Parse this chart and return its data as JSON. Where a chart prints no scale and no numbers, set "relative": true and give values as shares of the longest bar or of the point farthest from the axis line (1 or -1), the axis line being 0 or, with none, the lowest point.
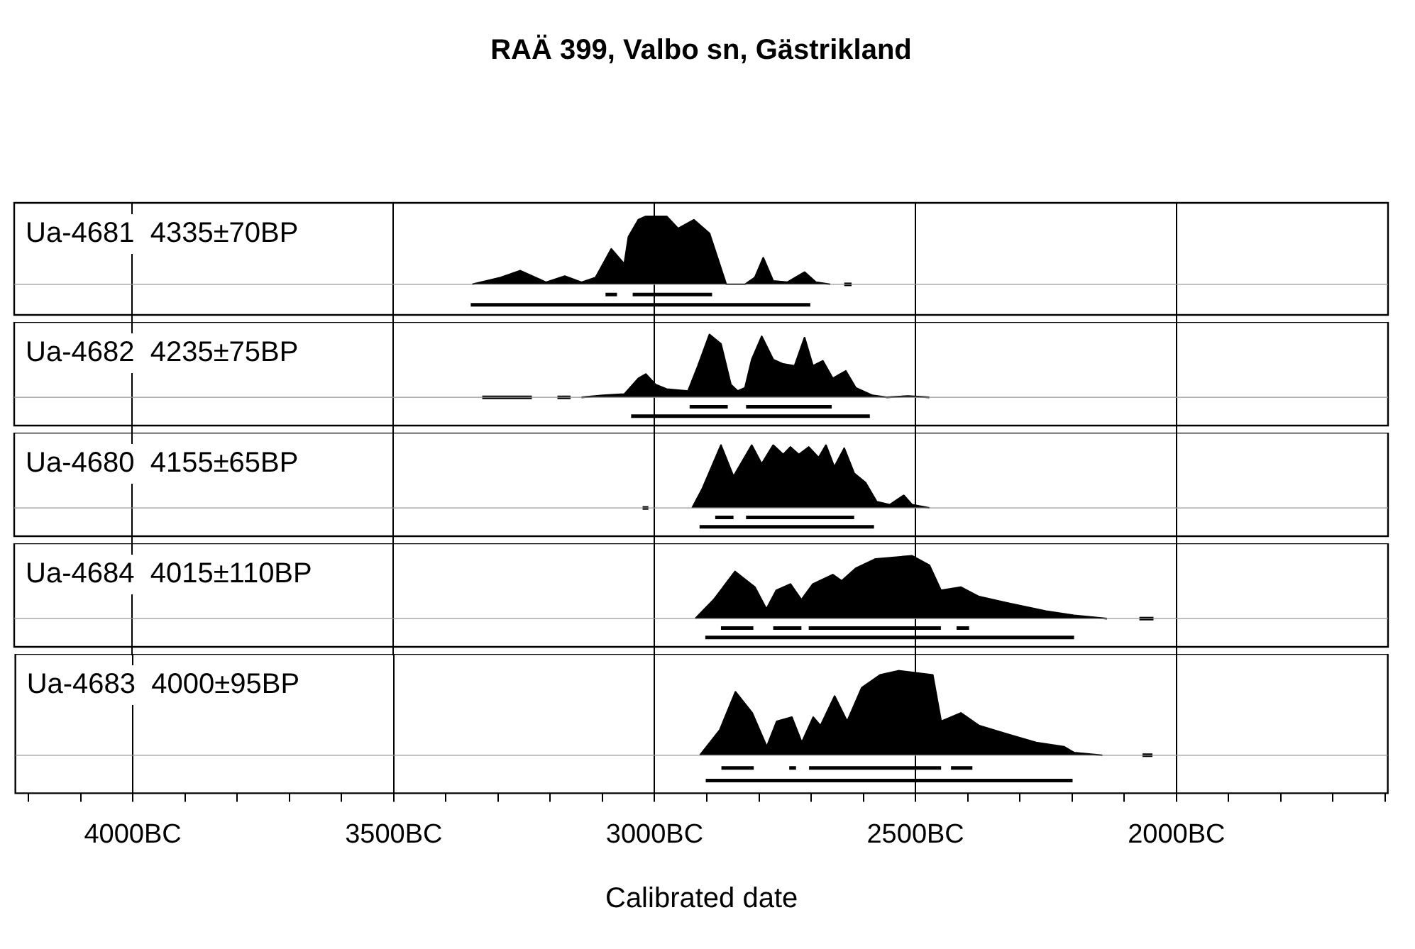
{
  "chart_data": [
    {
      "type": "area",
      "relative": true,
      "title": "RAÄ 399, Valbo sn, Gästrikland",
      "grid": "x",
      "tick_labels": false,
      "xlim": [
        -4225,
        -1595
      ],
      "xticks": [
        {
          "value": -4000,
          "label": null
        },
        {
          "value": -3500,
          "label": null
        },
        {
          "value": -3000,
          "label": null
        },
        {
          "value": -2500,
          "label": null
        },
        {
          "value": -2000,
          "label": null
        }
      ],
      "series": [
        {
          "name": "Ua-4681  4335±70BP",
          "color": "#000000",
          "x": [
            -3348,
            -3294,
            -3256,
            -3207,
            -3171,
            -3139,
            -3112,
            -3082,
            -3057,
            -3049,
            -3030,
            -3016,
            -2976,
            -2954,
            -2924,
            -2894,
            -2862,
            -2826,
            -2807,
            -2791,
            -2772,
            -2745,
            -2712,
            -2690,
            -2663
          ],
          "values": [
            0,
            0.1,
            0.2,
            0.03,
            0.12,
            0.03,
            0.1,
            0.52,
            0.3,
            0.7,
            0.95,
            1.0,
            1.0,
            0.82,
            0.95,
            0.75,
            0,
            0,
            0.1,
            0.39,
            0.05,
            0.03,
            0.18,
            0.03,
            0
          ]
        },
        {
          "type": "line",
          "color": "#000000",
          "x": [
            -2636,
            -2622
          ],
          "values": [
            0,
            0
          ]
        },
        {
          "type": "line",
          "color": "#000000",
          "x": [
            -3093,
            -3071,
            -3060,
            -3041,
            -2889
          ],
          "values": [
            -0.15,
            -0.15,
            null,
            -0.15,
            -0.15
          ]
        },
        {
          "type": "line",
          "color": "#000000",
          "x": [
            -3351,
            -2701
          ],
          "values": [
            -0.3,
            -0.3
          ]
        }
      ]
    },
    {
      "type": "area",
      "relative": true,
      "grid": "x",
      "tick_labels": false,
      "xlim": [
        -4225,
        -1595
      ],
      "xticks": [
        {
          "value": -4000,
          "label": null
        },
        {
          "value": -3500,
          "label": null
        },
        {
          "value": -3000,
          "label": null
        },
        {
          "value": -2500,
          "label": null
        },
        {
          "value": -2000,
          "label": null
        }
      ],
      "series": [
        {
          "name": "Ua-4682  4235±75BP",
          "color": "#000000",
          "x": [
            -3139,
            -3098,
            -3057,
            -3030,
            -3016,
            -2997,
            -2976,
            -2935,
            -2916,
            -2894,
            -2872,
            -2853,
            -2840,
            -2826,
            -2813,
            -2794,
            -2772,
            -2753,
            -2731,
            -2712,
            -2696,
            -2677,
            -2658,
            -2633,
            -2614,
            -2582,
            -2555,
            -2514,
            -2473
          ],
          "values": [
            0,
            0.03,
            0.05,
            0.3,
            0.37,
            0.2,
            0.13,
            0.1,
            0.5,
            1.0,
            0.85,
            0.2,
            0.1,
            0.15,
            0.6,
            0.97,
            0.6,
            0.53,
            0.5,
            0.95,
            0.5,
            0.58,
            0.3,
            0.42,
            0.15,
            0.03,
            0,
            0.02,
            0
          ]
        },
        {
          "type": "line",
          "color": "#000000",
          "x": [
            -3329,
            -3234,
            -3210,
            -3185,
            -3160
          ],
          "values": [
            0,
            0,
            null,
            0,
            0
          ]
        },
        {
          "type": "line",
          "color": "#000000",
          "x": [
            -2932,
            -2859,
            -2840,
            -2824,
            -2660
          ],
          "values": [
            -0.15,
            -0.15,
            null,
            -0.15,
            -0.15
          ]
        },
        {
          "type": "line",
          "color": "#000000",
          "x": [
            -3044,
            -2587
          ],
          "values": [
            -0.3,
            -0.3
          ]
        }
      ]
    },
    {
      "type": "area",
      "relative": true,
      "grid": "x",
      "tick_labels": false,
      "xlim": [
        -4225,
        -1595
      ],
      "xticks": [
        {
          "value": -4000,
          "label": null
        },
        {
          "value": -3500,
          "label": null
        },
        {
          "value": -3000,
          "label": null
        },
        {
          "value": -2500,
          "label": null
        },
        {
          "value": -2000,
          "label": null
        }
      ],
      "series": [
        {
          "name": "Ua-4680  4155±65BP",
          "color": "#000000",
          "x": [
            -2927,
            -2908,
            -2872,
            -2848,
            -2813,
            -2794,
            -2772,
            -2753,
            -2739,
            -2723,
            -2704,
            -2685,
            -2671,
            -2655,
            -2636,
            -2617,
            -2595,
            -2574,
            -2549,
            -2522,
            -2506,
            -2473
          ],
          "values": [
            0,
            0.3,
            1.0,
            0.5,
            1.0,
            0.7,
            1.0,
            0.85,
            0.97,
            0.85,
            0.97,
            0.8,
            1.0,
            0.65,
            0.95,
            0.55,
            0.4,
            0.1,
            0.05,
            0.2,
            0.05,
            0
          ]
        },
        {
          "type": "line",
          "color": "#000000",
          "x": [
            -3022,
            -3011
          ],
          "values": [
            0,
            0
          ]
        },
        {
          "type": "line",
          "color": "#000000",
          "x": [
            -2883,
            -2848,
            -2835,
            -2824,
            -2617
          ],
          "values": [
            -0.15,
            -0.15,
            null,
            -0.15,
            -0.15
          ]
        },
        {
          "type": "line",
          "color": "#000000",
          "x": [
            -2913,
            -2579
          ],
          "values": [
            -0.3,
            -0.3
          ]
        }
      ]
    },
    {
      "type": "area",
      "relative": true,
      "grid": "x",
      "tick_labels": false,
      "xlim": [
        -4225,
        -1595
      ],
      "xticks": [
        {
          "value": -4000,
          "label": null
        },
        {
          "value": -3500,
          "label": null
        },
        {
          "value": -3000,
          "label": null
        },
        {
          "value": -2500,
          "label": null
        },
        {
          "value": -2000,
          "label": null
        }
      ],
      "series": [
        {
          "name": "Ua-4684  4015±110BP",
          "color": "#000000",
          "x": [
            -2921,
            -2886,
            -2845,
            -2807,
            -2785,
            -2766,
            -2739,
            -2718,
            -2696,
            -2658,
            -2641,
            -2614,
            -2576,
            -2506,
            -2473,
            -2451,
            -2413,
            -2378,
            -2324,
            -2250,
            -2196,
            -2133
          ],
          "values": [
            0,
            0.3,
            0.75,
            0.5,
            0.15,
            0.45,
            0.55,
            0.3,
            0.55,
            0.7,
            0.6,
            0.8,
            0.95,
            1.0,
            0.85,
            0.45,
            0.5,
            0.35,
            0.25,
            0.12,
            0.05,
            0
          ]
        },
        {
          "type": "line",
          "color": "#000000",
          "x": [
            -2071,
            -2044
          ],
          "values": [
            0,
            0
          ]
        },
        {
          "type": "line",
          "color": "#000000",
          "x": [
            -2872,
            -2810,
            -2790,
            -2772,
            -2718,
            -2710,
            -2704,
            -2451,
            -2430,
            -2421,
            -2397
          ],
          "values": [
            -0.15,
            -0.15,
            null,
            -0.15,
            -0.15,
            null,
            -0.15,
            -0.15,
            null,
            -0.15,
            -0.15
          ]
        },
        {
          "type": "line",
          "color": "#000000",
          "x": [
            -2902,
            -2196
          ],
          "values": [
            -0.3,
            -0.3
          ]
        }
      ]
    },
    {
      "type": "area",
      "relative": true,
      "xlabel": "Calibrated date",
      "grid": "x",
      "tick_labels": "x",
      "xlim": [
        -4225,
        -1595
      ],
      "xticks": [
        {
          "value": -4200,
          "label": null
        },
        {
          "value": -4100,
          "label": null
        },
        {
          "value": -4000,
          "label": "4000BC"
        },
        {
          "value": -3900,
          "label": null
        },
        {
          "value": -3800,
          "label": null
        },
        {
          "value": -3700,
          "label": null
        },
        {
          "value": -3600,
          "label": null
        },
        {
          "value": -3500,
          "label": "3500BC"
        },
        {
          "value": -3400,
          "label": null
        },
        {
          "value": -3300,
          "label": null
        },
        {
          "value": -3200,
          "label": null
        },
        {
          "value": -3100,
          "label": null
        },
        {
          "value": -3000,
          "label": "3000BC"
        },
        {
          "value": -2900,
          "label": null
        },
        {
          "value": -2800,
          "label": null
        },
        {
          "value": -2700,
          "label": null
        },
        {
          "value": -2600,
          "label": null
        },
        {
          "value": -2500,
          "label": "2500BC"
        },
        {
          "value": -2400,
          "label": null
        },
        {
          "value": -2300,
          "label": null
        },
        {
          "value": -2200,
          "label": null
        },
        {
          "value": -2100,
          "label": null
        },
        {
          "value": -2000,
          "label": "2000BC"
        },
        {
          "value": -1900,
          "label": null
        },
        {
          "value": -1800,
          "label": null
        },
        {
          "value": -1700,
          "label": null
        },
        {
          "value": -1600,
          "label": null
        }
      ],
      "series": [
        {
          "name": "Ua-4683  4000±95BP",
          "color": "#000000",
          "x": [
            -2913,
            -2875,
            -2845,
            -2813,
            -2785,
            -2766,
            -2737,
            -2718,
            -2696,
            -2682,
            -2655,
            -2631,
            -2603,
            -2568,
            -2533,
            -2467,
            -2451,
            -2413,
            -2378,
            -2324,
            -2269,
            -2215,
            -2196,
            -2142
          ],
          "values": [
            0,
            0.3,
            0.75,
            0.5,
            0.1,
            0.4,
            0.45,
            0.15,
            0.45,
            0.35,
            0.7,
            0.4,
            0.8,
            0.95,
            1.0,
            0.95,
            0.4,
            0.5,
            0.35,
            0.25,
            0.15,
            0.1,
            0.03,
            0
          ]
        },
        {
          "type": "line",
          "color": "#000000",
          "x": [
            -2065,
            -2046
          ],
          "values": [
            0,
            0
          ]
        },
        {
          "type": "line",
          "color": "#000000",
          "x": [
            -2872,
            -2810,
            -2780,
            -2742,
            -2729,
            -2715,
            -2704,
            -2451,
            -2440,
            -2432,
            -2391
          ],
          "values": [
            -0.15,
            -0.15,
            null,
            -0.15,
            -0.15,
            null,
            -0.15,
            -0.15,
            null,
            -0.15,
            -0.15
          ]
        },
        {
          "type": "line",
          "color": "#000000",
          "x": [
            -2902,
            -2199
          ],
          "values": [
            -0.3,
            -0.3
          ]
        }
      ]
    }
  ]
}
